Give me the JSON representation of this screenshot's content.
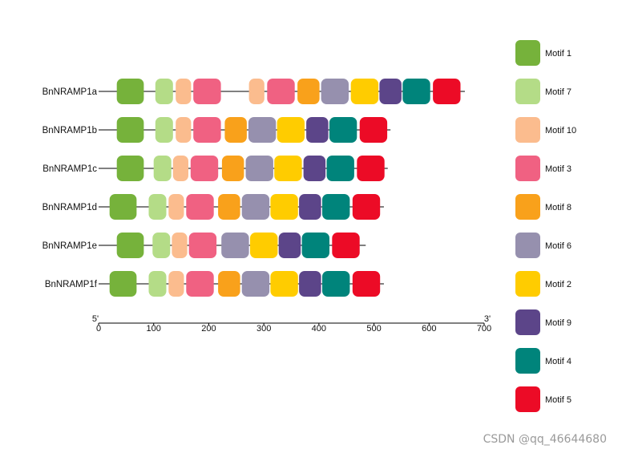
{
  "chart_data": {
    "type": "motif-diagram",
    "title": "",
    "axis": {
      "min": 0,
      "max": 700,
      "ticks": [
        0,
        100,
        200,
        300,
        400,
        500,
        600,
        700
      ],
      "start_label": "5'",
      "end_label": "3'"
    },
    "motifs": [
      {
        "name": "Motif 1",
        "color": "#76B23B"
      },
      {
        "name": "Motif 7",
        "color": "#B4DC87"
      },
      {
        "name": "Motif 10",
        "color": "#FBBC8E"
      },
      {
        "name": "Motif 3",
        "color": "#F06182"
      },
      {
        "name": "Motif 8",
        "color": "#F9A11B"
      },
      {
        "name": "Motif 6",
        "color": "#9690AE"
      },
      {
        "name": "Motif 2",
        "color": "#FFCC00"
      },
      {
        "name": "Motif 9",
        "color": "#5C4589"
      },
      {
        "name": "Motif 4",
        "color": "#00847B"
      },
      {
        "name": "Motif 5",
        "color": "#EC0B26"
      }
    ],
    "genes": [
      {
        "name": "BnNRAMP1a",
        "length": 665,
        "motifs": [
          {
            "motif": "Motif 1",
            "start": 33,
            "end": 82
          },
          {
            "motif": "Motif 7",
            "start": 103,
            "end": 135
          },
          {
            "motif": "Motif 10",
            "start": 140,
            "end": 168
          },
          {
            "motif": "Motif 3",
            "start": 172,
            "end": 222
          },
          {
            "motif": "Motif 10",
            "start": 273,
            "end": 301
          },
          {
            "motif": "Motif 3",
            "start": 306,
            "end": 356
          },
          {
            "motif": "Motif 8",
            "start": 361,
            "end": 401
          },
          {
            "motif": "Motif 6",
            "start": 404,
            "end": 454
          },
          {
            "motif": "Motif 2",
            "start": 458,
            "end": 508
          },
          {
            "motif": "Motif 9",
            "start": 510,
            "end": 550
          },
          {
            "motif": "Motif 4",
            "start": 552,
            "end": 602
          },
          {
            "motif": "Motif 5",
            "start": 607,
            "end": 657
          }
        ]
      },
      {
        "name": "BnNRAMP1b",
        "length": 530,
        "motifs": [
          {
            "motif": "Motif 1",
            "start": 33,
            "end": 82
          },
          {
            "motif": "Motif 7",
            "start": 103,
            "end": 135
          },
          {
            "motif": "Motif 10",
            "start": 140,
            "end": 168
          },
          {
            "motif": "Motif 3",
            "start": 172,
            "end": 222
          },
          {
            "motif": "Motif 8",
            "start": 229,
            "end": 269
          },
          {
            "motif": "Motif 6",
            "start": 272,
            "end": 322
          },
          {
            "motif": "Motif 2",
            "start": 324,
            "end": 374
          },
          {
            "motif": "Motif 9",
            "start": 377,
            "end": 417
          },
          {
            "motif": "Motif 4",
            "start": 419,
            "end": 469
          },
          {
            "motif": "Motif 5",
            "start": 474,
            "end": 524
          }
        ]
      },
      {
        "name": "BnNRAMP1c",
        "length": 525,
        "motifs": [
          {
            "motif": "Motif 1",
            "start": 33,
            "end": 82
          },
          {
            "motif": "Motif 7",
            "start": 100,
            "end": 132
          },
          {
            "motif": "Motif 10",
            "start": 135,
            "end": 163
          },
          {
            "motif": "Motif 3",
            "start": 167,
            "end": 217
          },
          {
            "motif": "Motif 8",
            "start": 224,
            "end": 264
          },
          {
            "motif": "Motif 6",
            "start": 267,
            "end": 317
          },
          {
            "motif": "Motif 2",
            "start": 319,
            "end": 369
          },
          {
            "motif": "Motif 9",
            "start": 372,
            "end": 412
          },
          {
            "motif": "Motif 4",
            "start": 414,
            "end": 464
          },
          {
            "motif": "Motif 5",
            "start": 469,
            "end": 519
          }
        ]
      },
      {
        "name": "BnNRAMP1d",
        "length": 518,
        "motifs": [
          {
            "motif": "Motif 1",
            "start": 20,
            "end": 69
          },
          {
            "motif": "Motif 7",
            "start": 91,
            "end": 123
          },
          {
            "motif": "Motif 10",
            "start": 127,
            "end": 155
          },
          {
            "motif": "Motif 3",
            "start": 159,
            "end": 209
          },
          {
            "motif": "Motif 8",
            "start": 217,
            "end": 257
          },
          {
            "motif": "Motif 6",
            "start": 260,
            "end": 310
          },
          {
            "motif": "Motif 2",
            "start": 312,
            "end": 362
          },
          {
            "motif": "Motif 9",
            "start": 364,
            "end": 404
          },
          {
            "motif": "Motif 4",
            "start": 406,
            "end": 456
          },
          {
            "motif": "Motif 5",
            "start": 461,
            "end": 511
          }
        ]
      },
      {
        "name": "BnNRAMP1e",
        "length": 485,
        "motifs": [
          {
            "motif": "Motif 1",
            "start": 33,
            "end": 82
          },
          {
            "motif": "Motif 7",
            "start": 98,
            "end": 130
          },
          {
            "motif": "Motif 10",
            "start": 133,
            "end": 161
          },
          {
            "motif": "Motif 3",
            "start": 164,
            "end": 214
          },
          {
            "motif": "Motif 6",
            "start": 223,
            "end": 273
          },
          {
            "motif": "Motif 2",
            "start": 275,
            "end": 325
          },
          {
            "motif": "Motif 9",
            "start": 327,
            "end": 367
          },
          {
            "motif": "Motif 4",
            "start": 369,
            "end": 419
          },
          {
            "motif": "Motif 5",
            "start": 424,
            "end": 474
          }
        ]
      },
      {
        "name": "BnNRAMP1f",
        "length": 518,
        "motifs": [
          {
            "motif": "Motif 1",
            "start": 20,
            "end": 69
          },
          {
            "motif": "Motif 7",
            "start": 91,
            "end": 123
          },
          {
            "motif": "Motif 10",
            "start": 127,
            "end": 155
          },
          {
            "motif": "Motif 3",
            "start": 159,
            "end": 209
          },
          {
            "motif": "Motif 8",
            "start": 217,
            "end": 257
          },
          {
            "motif": "Motif 6",
            "start": 260,
            "end": 310
          },
          {
            "motif": "Motif 2",
            "start": 312,
            "end": 362
          },
          {
            "motif": "Motif 9",
            "start": 364,
            "end": 404
          },
          {
            "motif": "Motif 4",
            "start": 406,
            "end": 456
          },
          {
            "motif": "Motif 5",
            "start": 461,
            "end": 511
          }
        ]
      }
    ]
  },
  "watermark": "CSDN @qq_46644680"
}
